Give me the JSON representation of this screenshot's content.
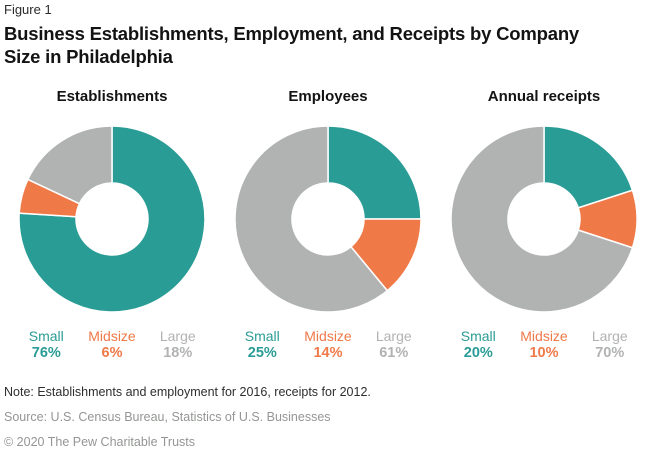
{
  "figure_label": "Figure 1",
  "title": "Business Establishments, Employment, and Receipts by Company Size in Philadelphia",
  "palette": {
    "small": "#2A9C96",
    "midsize": "#F07948",
    "large": "#B1B3B2"
  },
  "chart_data": [
    {
      "type": "pie",
      "subtype": "donut",
      "title": "Establishments",
      "categories": [
        "Small",
        "Midsize",
        "Large"
      ],
      "values": [
        76,
        6,
        18
      ],
      "unit": "%",
      "colors": [
        "#2A9C96",
        "#F07948",
        "#B1B3B2"
      ],
      "start_angle_deg": -90,
      "direction": "clockwise",
      "inner_radius_ratio": 0.39,
      "legend_position": "bottom"
    },
    {
      "type": "pie",
      "subtype": "donut",
      "title": "Employees",
      "categories": [
        "Small",
        "Midsize",
        "Large"
      ],
      "values": [
        25,
        14,
        61
      ],
      "unit": "%",
      "colors": [
        "#2A9C96",
        "#F07948",
        "#B1B3B2"
      ],
      "start_angle_deg": -90,
      "direction": "clockwise",
      "inner_radius_ratio": 0.39,
      "legend_position": "bottom"
    },
    {
      "type": "pie",
      "subtype": "donut",
      "title": "Annual receipts",
      "categories": [
        "Small",
        "Midsize",
        "Large"
      ],
      "values": [
        20,
        10,
        70
      ],
      "unit": "%",
      "colors": [
        "#2A9C96",
        "#F07948",
        "#B1B3B2"
      ],
      "start_angle_deg": -90,
      "direction": "clockwise",
      "inner_radius_ratio": 0.39,
      "legend_position": "bottom"
    }
  ],
  "footer": {
    "note": "Note: Establishments and employment for 2016, receipts for 2012.",
    "source": "Source: U.S. Census Bureau, Statistics of U.S. Businesses",
    "copyright": "© 2020 The Pew Charitable Trusts"
  }
}
